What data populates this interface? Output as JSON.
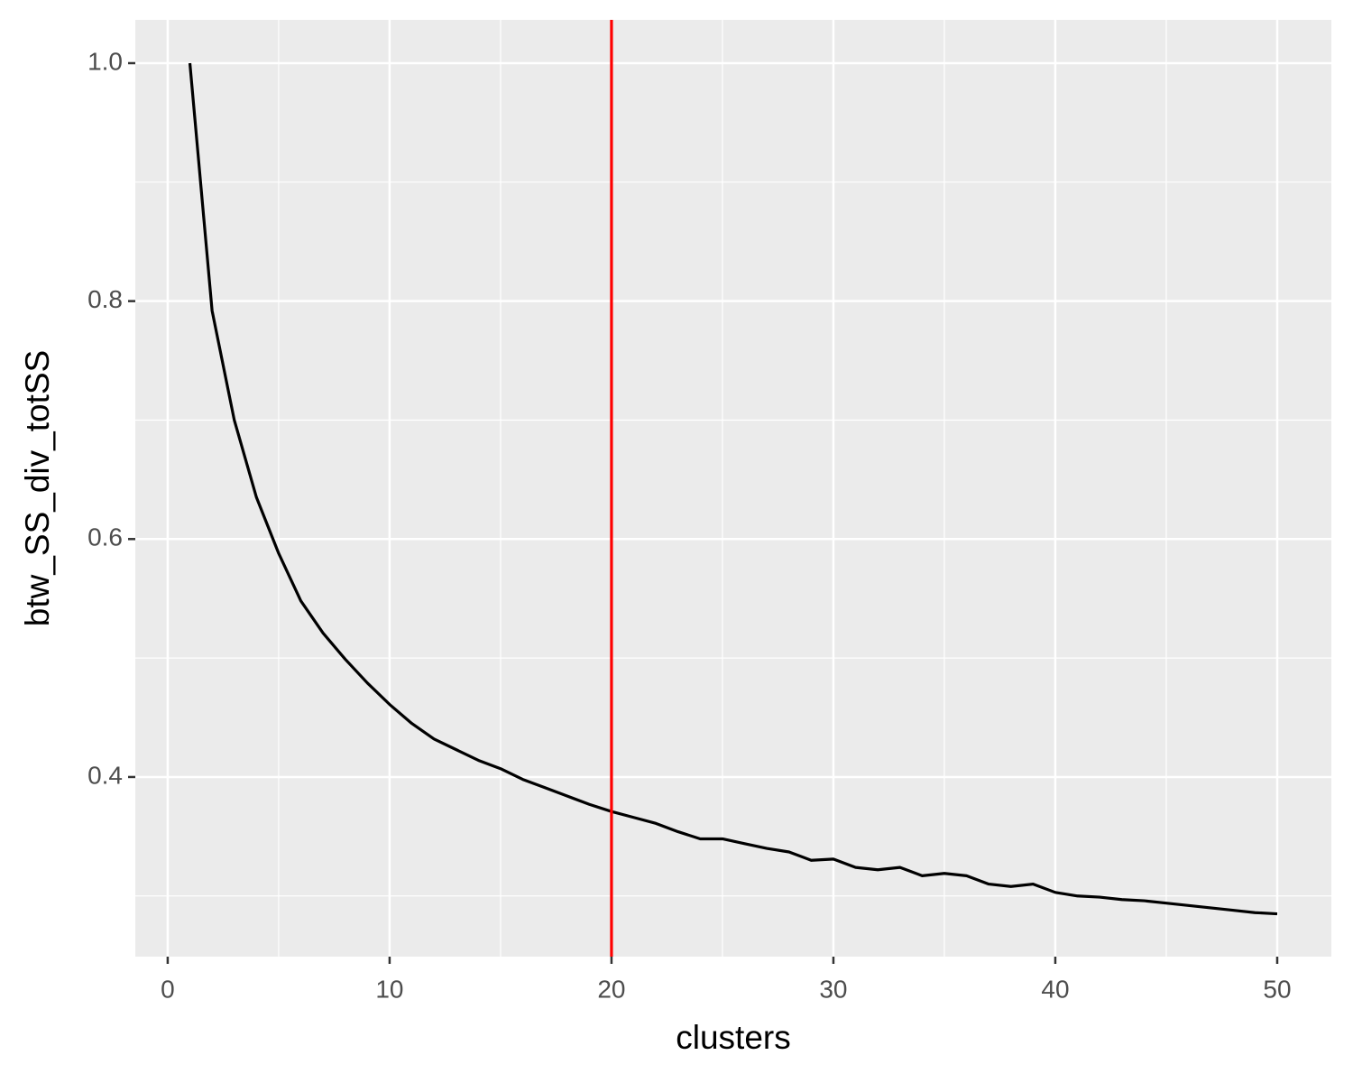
{
  "chart_data": {
    "type": "line",
    "x_label": "clusters",
    "y_label": "btw_SS_div_totSS",
    "x": [
      1,
      2,
      3,
      4,
      5,
      6,
      7,
      8,
      9,
      10,
      11,
      12,
      13,
      14,
      15,
      16,
      17,
      18,
      19,
      20,
      21,
      22,
      23,
      24,
      25,
      26,
      27,
      28,
      29,
      30,
      31,
      32,
      33,
      34,
      35,
      36,
      37,
      38,
      39,
      40,
      41,
      42,
      43,
      44,
      45,
      46,
      47,
      48,
      49,
      50
    ],
    "values": [
      1.0,
      0.792,
      0.7,
      0.635,
      0.588,
      0.548,
      0.521,
      0.499,
      0.479,
      0.461,
      0.445,
      0.432,
      0.423,
      0.414,
      0.407,
      0.398,
      0.391,
      0.384,
      0.377,
      0.371,
      0.366,
      0.361,
      0.354,
      0.348,
      0.348,
      0.344,
      0.34,
      0.337,
      0.33,
      0.331,
      0.324,
      0.322,
      0.324,
      0.317,
      0.319,
      0.317,
      0.31,
      0.308,
      0.31,
      0.303,
      0.3,
      0.299,
      0.297,
      0.296,
      0.294,
      0.292,
      0.29,
      0.288,
      0.286,
      0.285
    ],
    "color": "#000000",
    "vline": {
      "x": 20,
      "color": "#ff0000"
    },
    "xlim": [
      -1.46,
      52.44
    ],
    "xticks": [
      0,
      10,
      20,
      30,
      40,
      50
    ],
    "ylim": [
      0.249,
      1.0364
    ],
    "yticks": [
      {
        "value": 1,
        "label": "1.0"
      },
      0.8,
      0.6,
      0.4
    ],
    "x_minor_grid": [
      5,
      15,
      25,
      35,
      45
    ],
    "y_minor_grid": [
      0.3,
      0.5,
      0.7,
      0.9
    ],
    "grid": true
  }
}
